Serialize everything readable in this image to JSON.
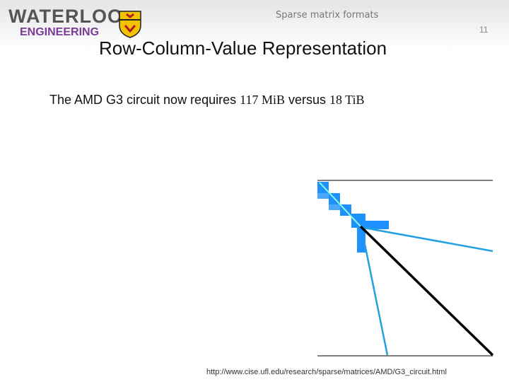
{
  "header": {
    "logo_top": "WATERLOO",
    "logo_bottom": "ENGINEERING",
    "section": "Sparse matrix formats",
    "page_number": "11"
  },
  "title": "Row-Column-Value Representation",
  "body": {
    "text_before": "The AMD G3 circuit now requires ",
    "size_new": "117 MiB",
    "text_middle": " versus ",
    "size_old": "18 TiB"
  },
  "source_url": "http://www.cise.ufl.edu/research/sparse/matrices/AMD/G3_circuit.html"
}
